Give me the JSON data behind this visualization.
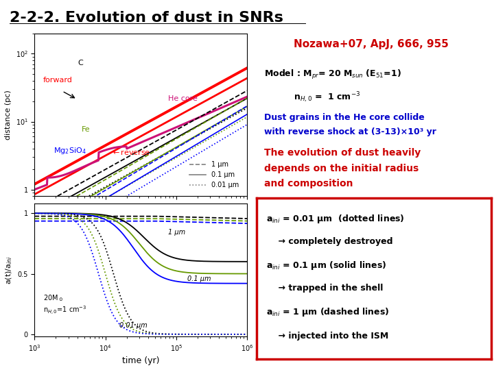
{
  "title": "2-2-2. Evolution of dust in SNRs",
  "reference": "Nozawa+07, ApJ, 666, 955",
  "model_line1": "Model : M$_{pr}$= 20 M$_{sun}$ (E$_{51}$=1)",
  "model_line2": "n$_{H,0}$ =  1 cm$^{-3}$",
  "dust_text_1": "Dust grains in the He core collide",
  "dust_text_2": "with reverse shock at (3-13)×10³ yr",
  "evolution_text_1": "The evolution of dust heavily",
  "evolution_text_2": "depends on the initial radius",
  "evolution_text_3": "and composition",
  "box_line1": "a$_{ini}$ = 0.01 μm  (dotted lines)",
  "box_line2": "    → completely destroyed",
  "box_line3": "a$_{ini}$ = 0.1 μm (solid lines)",
  "box_line4": "    → trapped in the shell",
  "box_line5": "a$_{ini}$ = 1 μm (dashed lines)",
  "box_line6": "    → injected into the ISM",
  "bg_color": "#ffffff",
  "title_color": "#000000",
  "reference_color": "#cc0000",
  "model_color": "#000000",
  "dust_color": "#0000cc",
  "evolution_color": "#cc0000",
  "box_text_color": "#000000",
  "box_border_color": "#cc0000"
}
